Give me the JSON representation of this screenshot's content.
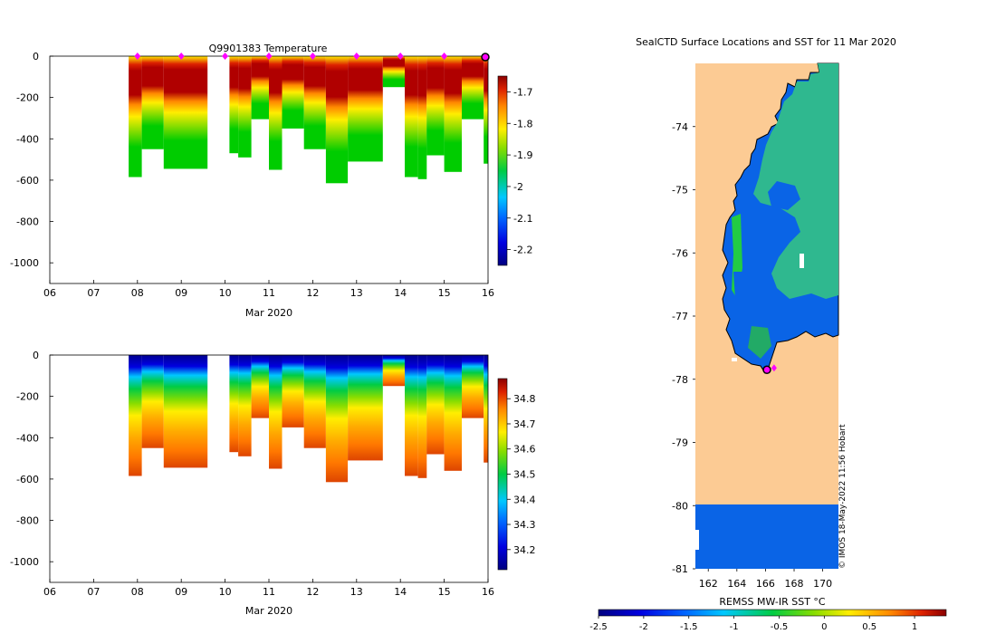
{
  "temperature_panel": {
    "title": "Q9901383  Temperature",
    "xlabel": "Mar 2020",
    "x_ticks": [
      "06",
      "07",
      "08",
      "09",
      "10",
      "11",
      "12",
      "13",
      "14",
      "15",
      "16"
    ],
    "y_ticks": [
      "0",
      "-200",
      "-400",
      "-600",
      "-800",
      "-1000"
    ],
    "colorbar_ticks": [
      "-1.7",
      "-1.8",
      "-1.9",
      "-2",
      "-2.1",
      "-2.2"
    ]
  },
  "salinity_panel": {
    "title": "",
    "xlabel": "Mar 2020",
    "x_ticks": [
      "06",
      "07",
      "08",
      "09",
      "10",
      "11",
      "12",
      "13",
      "14",
      "15",
      "16"
    ],
    "y_ticks": [
      "0",
      "-200",
      "-400",
      "-600",
      "-800",
      "-1000"
    ],
    "colorbar_ticks": [
      "34.8",
      "34.7",
      "34.6",
      "34.5",
      "34.4",
      "34.3",
      "34.2"
    ]
  },
  "map_panel": {
    "title": "SealCTD Surface Locations and SST for 11 Mar 2020",
    "lat_ticks": [
      "-74",
      "-75",
      "-76",
      "-77",
      "-78",
      "-79",
      "-80",
      "-81"
    ],
    "lon_ticks": [
      "162",
      "164",
      "166",
      "168",
      "170"
    ],
    "colorbar_label": "REMSS MW-IR SST °C",
    "colorbar_ticks": [
      "-2.5",
      "-2",
      "-1.5",
      "-1",
      "-0.5",
      "0",
      "0.5",
      "1"
    ],
    "credit": "© IMOS 18-May-2022 11:56 Hobart"
  },
  "chart_data": [
    {
      "type": "heatmap",
      "variable": "temperature",
      "title": "Q9901383  Temperature",
      "xlabel": "Mar 2020",
      "ylabel": "",
      "xlim": [
        6,
        16
      ],
      "ylim": [
        -1100,
        0
      ],
      "clim": [
        -2.25,
        -1.65
      ],
      "profile_markers_days": [
        8,
        9,
        10,
        11,
        12,
        13,
        14,
        15
      ],
      "last_position_day": 16,
      "profiles": [
        {
          "day": 7.8,
          "max_depth": 585
        },
        {
          "day": 8.1,
          "max_depth": 450
        },
        {
          "day": 8.6,
          "max_depth": 545
        },
        {
          "day": 9.1,
          "max_depth": 545
        },
        {
          "day": 10.1,
          "max_depth": 470
        },
        {
          "day": 10.3,
          "max_depth": 490
        },
        {
          "day": 10.6,
          "max_depth": 305
        },
        {
          "day": 11.0,
          "max_depth": 550
        },
        {
          "day": 11.3,
          "max_depth": 350
        },
        {
          "day": 11.8,
          "max_depth": 450
        },
        {
          "day": 12.3,
          "max_depth": 615
        },
        {
          "day": 12.8,
          "max_depth": 510
        },
        {
          "day": 13.6,
          "max_depth": 150
        },
        {
          "day": 14.1,
          "max_depth": 585
        },
        {
          "day": 14.4,
          "max_depth": 595
        },
        {
          "day": 14.6,
          "max_depth": 480
        },
        {
          "day": 15.0,
          "max_depth": 560
        },
        {
          "day": 15.4,
          "max_depth": 305
        },
        {
          "day": 15.9,
          "max_depth": 520
        }
      ]
    },
    {
      "type": "heatmap",
      "variable": "salinity",
      "title": "",
      "xlabel": "Mar 2020",
      "ylabel": "",
      "xlim": [
        6,
        16
      ],
      "ylim": [
        -1100,
        0
      ],
      "clim": [
        34.12,
        34.88
      ]
    },
    {
      "type": "heatmap",
      "variable": "sst",
      "title": "SealCTD Surface Locations and SST for 11 Mar 2020",
      "xlabel": "",
      "ylabel": "",
      "xlim": [
        161.1,
        171.1
      ],
      "ylim": [
        -81,
        -73
      ],
      "clim": [
        -2.5,
        1.35
      ],
      "colorbar_label": "REMSS MW-IR SST °C",
      "seal_positions": [
        {
          "lon": 166.1,
          "lat": -77.85
        },
        {
          "lon": 166.6,
          "lat": -77.82
        }
      ]
    }
  ]
}
